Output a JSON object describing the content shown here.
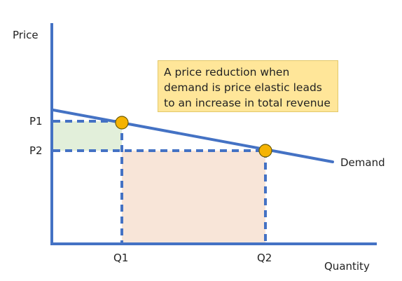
{
  "axes": {
    "y_label": "Price",
    "x_label": "Quantity"
  },
  "price_levels": [
    "P1",
    "P2"
  ],
  "quantity_levels": [
    "Q1",
    "Q2"
  ],
  "curve_label": "Demand",
  "note_lines": [
    "A price reduction when",
    "demand is price elastic leads",
    "to an increase in total revenue"
  ],
  "colors": {
    "line": "#4472c4",
    "point": "#f5b301",
    "lost_area": "#e2efda",
    "gained_area": "#f8e5d8",
    "note_bg": "#ffe699"
  }
}
